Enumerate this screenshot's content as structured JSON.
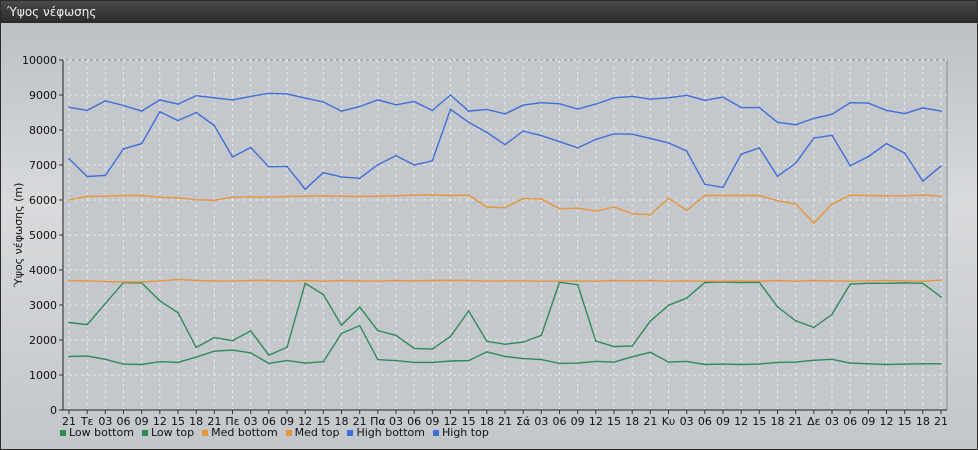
{
  "window": {
    "title": "Ύψος νέφωσης"
  },
  "chart_data": {
    "type": "line",
    "ylabel": "Ύψος νέφωσης (m)",
    "ylim": [
      0,
      10000
    ],
    "yticks": [
      0,
      1000,
      2000,
      3000,
      4000,
      5000,
      6000,
      7000,
      8000,
      9000,
      10000
    ],
    "grid": true,
    "legend_position": "bottom-left",
    "categories": [
      "21",
      "Τε",
      "03",
      "06",
      "09",
      "12",
      "15",
      "18",
      "21",
      "Πε",
      "03",
      "06",
      "09",
      "12",
      "15",
      "18",
      "21",
      "Πα",
      "03",
      "06",
      "09",
      "12",
      "15",
      "18",
      "21",
      "Σά",
      "03",
      "06",
      "09",
      "12",
      "15",
      "18",
      "21",
      "Κυ",
      "03",
      "06",
      "09",
      "12",
      "15",
      "18",
      "21",
      "Δε",
      "03",
      "06",
      "09",
      "12",
      "15",
      "18",
      "21"
    ],
    "series": [
      {
        "name": "Low bottom",
        "color": "#2e8b57",
        "values": [
          1530,
          1540,
          1450,
          1310,
          1300,
          1380,
          1360,
          1510,
          1680,
          1710,
          1630,
          1330,
          1410,
          1340,
          1380,
          2190,
          2410,
          1440,
          1410,
          1360,
          1360,
          1400,
          1410,
          1660,
          1530,
          1470,
          1440,
          1330,
          1340,
          1390,
          1370,
          1520,
          1650,
          1370,
          1390,
          1300,
          1310,
          1300,
          1310,
          1360,
          1370,
          1420,
          1450,
          1340,
          1320,
          1300,
          1310,
          1320,
          1320
        ]
      },
      {
        "name": "Low top",
        "color": "#2e8b57",
        "values": [
          2500,
          2440,
          3040,
          3640,
          3630,
          3120,
          2780,
          1790,
          2070,
          1980,
          2260,
          1570,
          1790,
          3620,
          3300,
          2420,
          2940,
          2270,
          2130,
          1760,
          1740,
          2100,
          2830,
          1960,
          1880,
          1940,
          2130,
          3650,
          3580,
          1970,
          1810,
          1830,
          2540,
          2990,
          3200,
          3640,
          3660,
          3640,
          3650,
          2950,
          2550,
          2360,
          2730,
          3600,
          3620,
          3620,
          3630,
          3620,
          3230
        ]
      },
      {
        "name": "Med bottom",
        "color": "#e8953a",
        "values": [
          3700,
          3690,
          3670,
          3660,
          3660,
          3690,
          3730,
          3700,
          3690,
          3680,
          3700,
          3700,
          3680,
          3700,
          3680,
          3700,
          3690,
          3680,
          3700,
          3690,
          3700,
          3700,
          3700,
          3680,
          3690,
          3690,
          3680,
          3680,
          3690,
          3680,
          3700,
          3690,
          3700,
          3680,
          3690,
          3680,
          3680,
          3690,
          3680,
          3700,
          3680,
          3700,
          3690,
          3680,
          3690,
          3700,
          3690,
          3680,
          3710
        ]
      },
      {
        "name": "Med top",
        "color": "#e8953a",
        "values": [
          6000,
          6100,
          6110,
          6130,
          6130,
          6080,
          6060,
          6010,
          5990,
          6080,
          6090,
          6080,
          6100,
          6110,
          6120,
          6110,
          6100,
          6110,
          6120,
          6140,
          6150,
          6130,
          6140,
          5800,
          5780,
          6040,
          6030,
          5750,
          5770,
          5680,
          5800,
          5610,
          5580,
          6050,
          5700,
          6130,
          6130,
          6130,
          6130,
          5980,
          5890,
          5340,
          5880,
          6140,
          6130,
          6120,
          6120,
          6140,
          6110
        ]
      },
      {
        "name": "High bottom",
        "color": "#3e6ed8",
        "values": [
          7180,
          6670,
          6700,
          7460,
          7610,
          8520,
          8270,
          8500,
          8130,
          7230,
          7500,
          6950,
          6960,
          6310,
          6780,
          6660,
          6620,
          7010,
          7270,
          7000,
          7120,
          8590,
          8220,
          7930,
          7580,
          7970,
          7840,
          7670,
          7490,
          7730,
          7890,
          7880,
          7760,
          7630,
          7400,
          6450,
          6360,
          7310,
          7490,
          6680,
          7050,
          7770,
          7850,
          6980,
          7240,
          7610,
          7340,
          6540,
          6970
        ]
      },
      {
        "name": "High top",
        "color": "#3e6ed8",
        "values": [
          8650,
          8560,
          8830,
          8700,
          8540,
          8860,
          8740,
          8980,
          8920,
          8860,
          8960,
          9050,
          9030,
          8910,
          8800,
          8540,
          8670,
          8860,
          8720,
          8810,
          8560,
          9000,
          8540,
          8590,
          8460,
          8710,
          8780,
          8750,
          8600,
          8740,
          8920,
          8960,
          8880,
          8920,
          8990,
          8850,
          8940,
          8640,
          8640,
          8220,
          8150,
          8330,
          8450,
          8780,
          8770,
          8560,
          8470,
          8630,
          8540
        ]
      }
    ]
  }
}
